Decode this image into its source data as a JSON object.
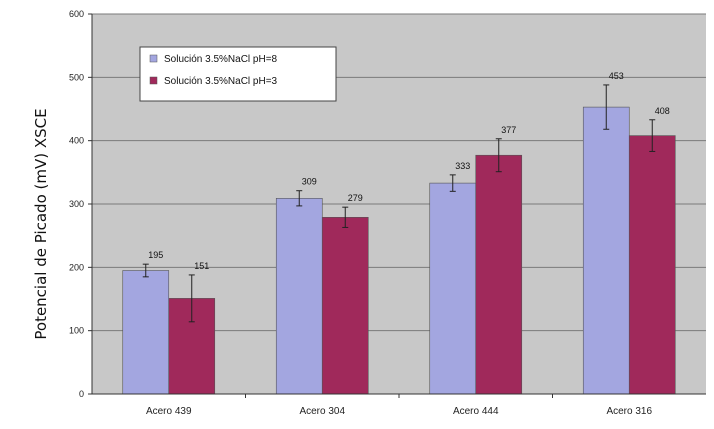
{
  "chart_data": {
    "type": "bar",
    "title": "",
    "xlabel": "",
    "ylabel": "Potencial de Picado (mV) XSCE",
    "ylim": [
      0,
      600
    ],
    "yticks": [
      0,
      100,
      200,
      300,
      400,
      500,
      600
    ],
    "grid": true,
    "legend_position": "top-left",
    "categories": [
      "Acero 439",
      "Acero 304",
      "Acero 444",
      "Acero 316"
    ],
    "series": [
      {
        "name": "Solución 3.5%NaCl pH=8",
        "color": "#a3a6e0",
        "values": [
          195,
          309,
          333,
          453
        ],
        "errors": [
          10,
          12,
          13,
          35
        ]
      },
      {
        "name": "Solución 3.5%NaCl pH=3",
        "color": "#a0295b",
        "values": [
          151,
          279,
          377,
          408
        ],
        "errors": [
          37,
          16,
          26,
          25
        ]
      }
    ],
    "colors": {
      "plot_background": "#c8c8c8",
      "gridline": "#7a7a7a"
    }
  }
}
